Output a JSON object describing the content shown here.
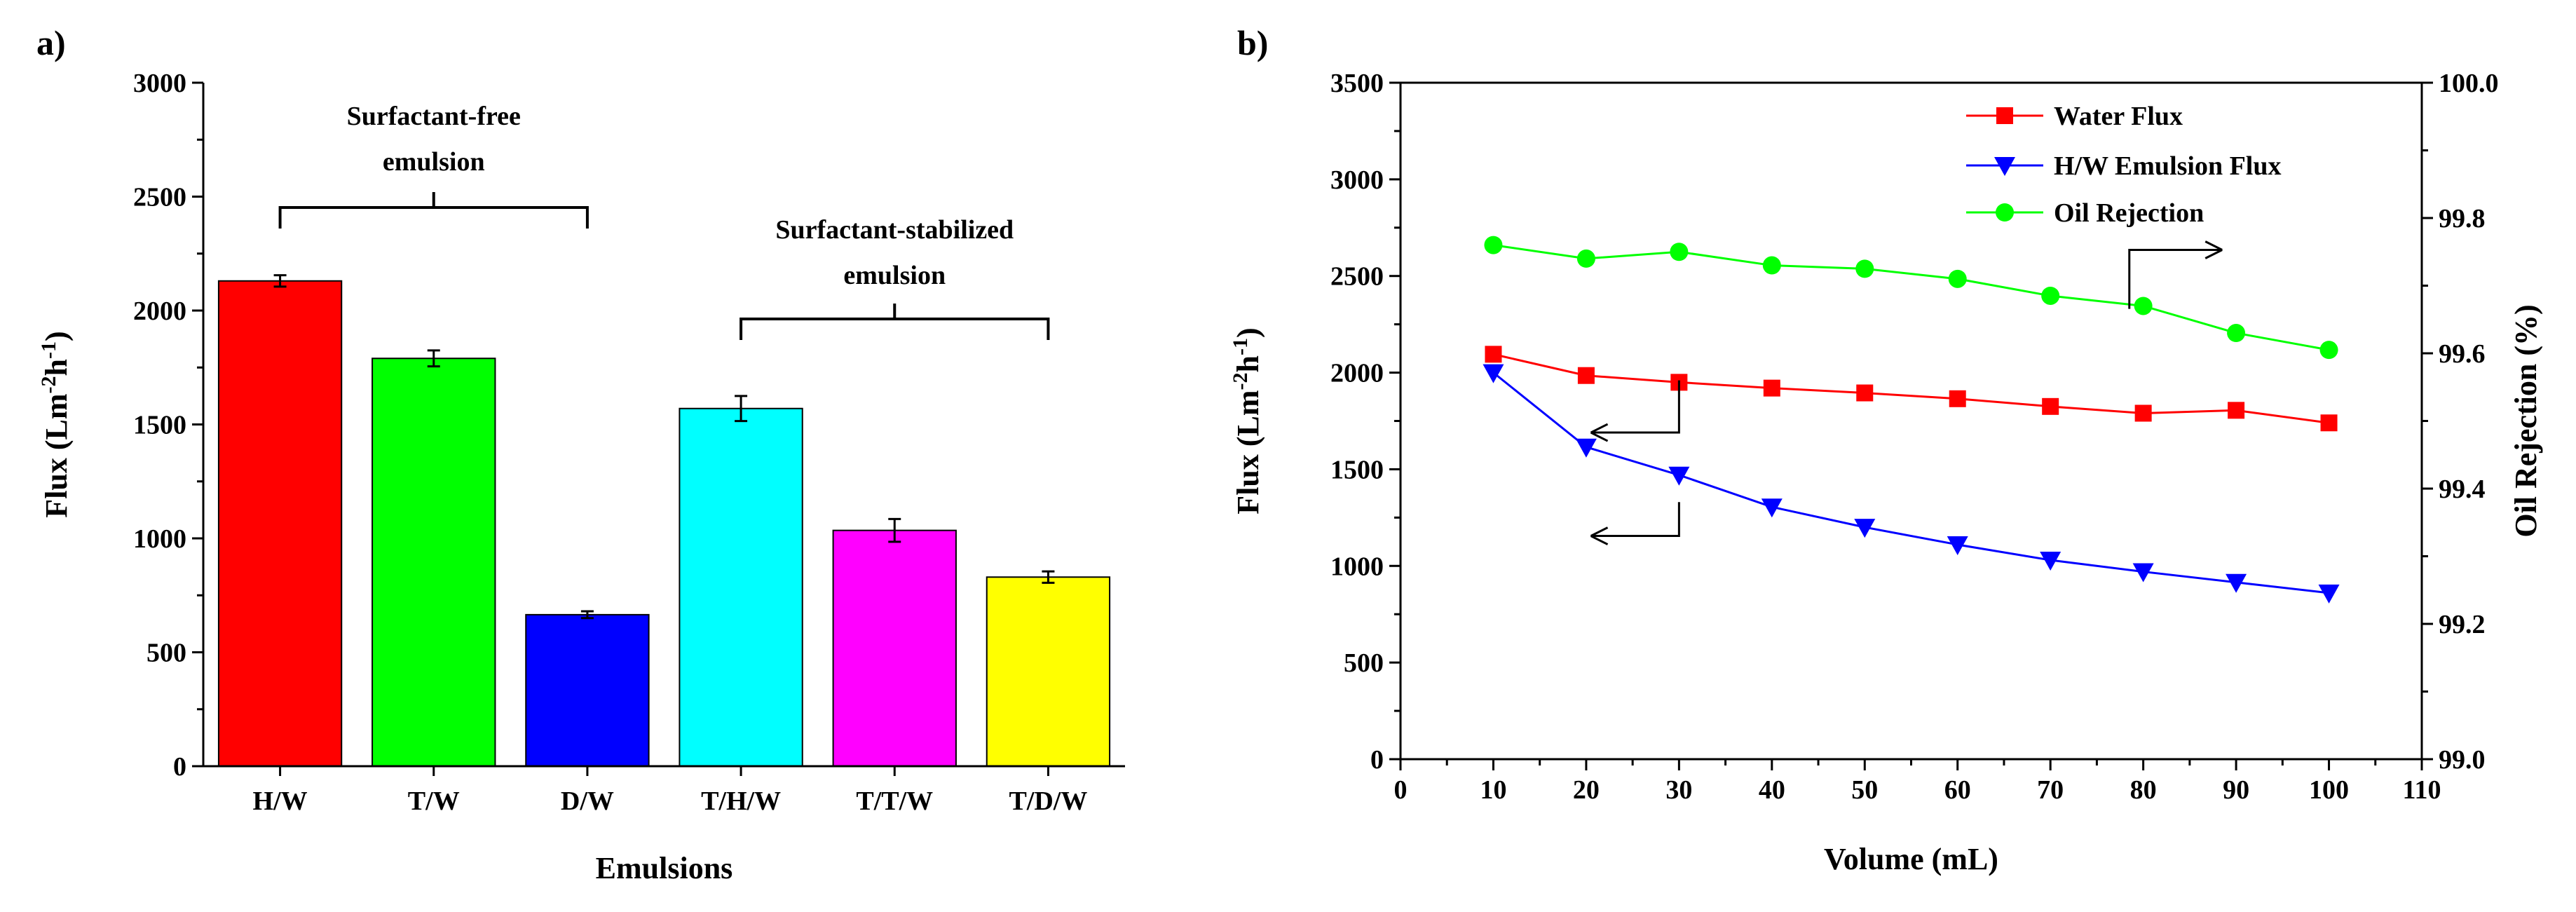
{
  "panels": {
    "a": "a)",
    "b": "b)"
  },
  "chart_data": [
    {
      "type": "bar",
      "title": "",
      "xlabel": "Emulsions",
      "ylabel": "Flux (Lm-2h-1)",
      "ylim": [
        0,
        3000
      ],
      "yticks": [
        0,
        500,
        1000,
        1500,
        2000,
        2500,
        3000
      ],
      "categories": [
        "H/W",
        "T/W",
        "D/W",
        "T/H/W",
        "T/T/W",
        "T/D/W"
      ],
      "values": [
        2130,
        1790,
        665,
        1570,
        1035,
        830
      ],
      "errors": [
        25,
        35,
        15,
        55,
        50,
        25
      ],
      "colors": [
        "#ff0000",
        "#00ff00",
        "#0000ff",
        "#00ffff",
        "#ff00ff",
        "#ffff00"
      ],
      "annotations": [
        {
          "text": [
            "Surfactant-free",
            "emulsion"
          ],
          "spans": [
            "H/W",
            "D/W"
          ]
        },
        {
          "text": [
            "Surfactant-stabilized",
            "emulsion"
          ],
          "spans": [
            "T/H/W",
            "T/D/W"
          ]
        }
      ]
    },
    {
      "type": "line",
      "title": "",
      "xlabel": "Volume (mL)",
      "ylabel": "Flux (Lm-2h-1)",
      "y2label": "Oil Rejection  (%)",
      "xlim": [
        0,
        110
      ],
      "xticks": [
        0,
        10,
        20,
        30,
        40,
        50,
        60,
        70,
        80,
        90,
        100,
        110
      ],
      "ylim": [
        0,
        3500
      ],
      "yticks": [
        0,
        500,
        1000,
        1500,
        2000,
        2500,
        3000,
        3500
      ],
      "y2lim": [
        99.0,
        100.0
      ],
      "y2ticks": [
        "99.0",
        "99.2",
        "99.4",
        "99.6",
        "99.8",
        "100.0"
      ],
      "x": [
        10,
        20,
        30,
        40,
        50,
        60,
        70,
        80,
        90,
        100
      ],
      "legend_position": "top-right",
      "series": [
        {
          "name": "Water Flux",
          "axis": "left",
          "marker": "square",
          "color": "#ff0000",
          "values": [
            2095,
            1985,
            1950,
            1920,
            1895,
            1865,
            1825,
            1790,
            1805,
            1740
          ]
        },
        {
          "name": "H/W Emulsion Flux",
          "axis": "left",
          "marker": "triangle-down",
          "color": "#0000ff",
          "values": [
            2000,
            1615,
            1470,
            1305,
            1200,
            1110,
            1030,
            970,
            915,
            860
          ]
        },
        {
          "name": "Oil Rejection",
          "axis": "right",
          "marker": "circle",
          "color": "#00ff00",
          "values": [
            99.76,
            99.74,
            99.75,
            99.73,
            99.725,
            99.71,
            99.685,
            99.67,
            99.63,
            99.605
          ]
        }
      ]
    }
  ]
}
